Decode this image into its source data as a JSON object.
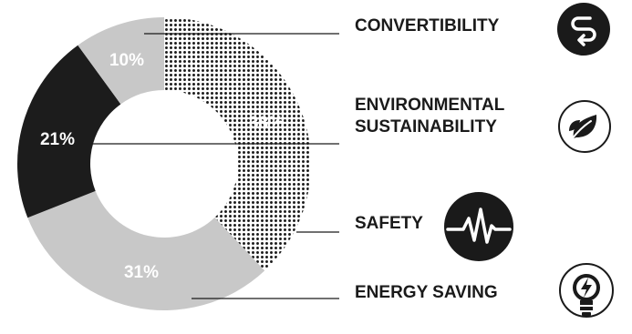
{
  "chart_data": {
    "type": "pie",
    "variant": "donut",
    "title": "",
    "legend": "none",
    "slices": [
      {
        "label": "CONVERTIBILITY",
        "label_lines": [
          "CONVERTIBILITY"
        ],
        "value": 38,
        "display": "38%",
        "fill": "dots",
        "color": "#1a1a1a",
        "icon": "arrows-loop-icon"
      },
      {
        "label": "ENERGY SAVING",
        "label_lines": [
          "ENERGY SAVING"
        ],
        "value": 31,
        "display": "31%",
        "fill": "solid",
        "color": "#c8c8c8",
        "icon": "lightbulb-bolt-icon"
      },
      {
        "label": "SAFETY",
        "label_lines": [
          "SAFETY"
        ],
        "value": 21,
        "display": "21%",
        "fill": "solid",
        "color": "#1c1c1c",
        "icon": "heartbeat-icon"
      },
      {
        "label": "ENVIRONMENTAL SUSTAINABILITY",
        "label_lines": [
          "ENVIRONMENTAL",
          "SUSTAINABILITY"
        ],
        "value": 10,
        "display": "10%",
        "fill": "solid",
        "color": "#c8c8c8",
        "icon": "leaf-icon"
      }
    ],
    "start_angle_deg": 0,
    "direction": "clockwise"
  }
}
